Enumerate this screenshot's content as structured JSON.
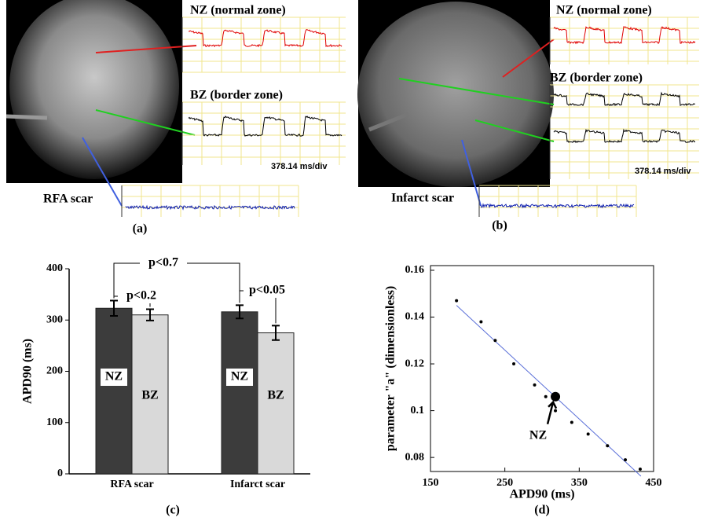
{
  "panels": [
    {
      "label": "(a)",
      "nz": "NZ  (normal zone)",
      "bz": "BZ (border zone)",
      "scale": "378.14 ms/div",
      "scar": "RFA scar"
    },
    {
      "label": "(b)",
      "nz": "NZ  (normal zone)",
      "bz": "BZ (border zone)",
      "scale": "378.14 ms/div",
      "scar": "Infarct scar"
    }
  ],
  "chart_data": [
    {
      "type": "bar",
      "panel_label": "(c)",
      "ylabel": "APD90 (ms)",
      "categories": [
        "RFA scar",
        "Infarct scar"
      ],
      "series": [
        {
          "name": "NZ",
          "color": "#3c3c3c",
          "values": [
            323,
            316
          ],
          "errors": [
            15,
            13
          ]
        },
        {
          "name": "BZ",
          "color": "#d9d9d9",
          "values": [
            310,
            275
          ],
          "errors": [
            11,
            14
          ]
        }
      ],
      "ylim": [
        0,
        400
      ],
      "yticks": [
        0,
        100,
        200,
        300,
        400
      ],
      "annotations": [
        "p<0.7",
        "p<0.2",
        "p<0.05"
      ]
    },
    {
      "type": "scatter",
      "panel_label": "(d)",
      "xlabel": "APD90 (ms)",
      "ylabel": "parameter  \"a\"  (dimensionless)",
      "x": [
        185,
        218,
        237,
        262,
        290,
        305,
        318,
        340,
        362,
        388,
        412,
        432
      ],
      "values": [
        0.147,
        0.138,
        0.13,
        0.12,
        0.111,
        0.106,
        0.1,
        0.095,
        0.09,
        0.085,
        0.079,
        0.075
      ],
      "color": "#000000",
      "fit": {
        "x": [
          185,
          433
        ],
        "y": [
          0.145,
          0.072
        ],
        "color": "#5a6fd8"
      },
      "highlight": {
        "x": 318,
        "y": 0.106,
        "label": "NZ"
      },
      "xlim": [
        150,
        450
      ],
      "xticks": [
        150,
        250,
        350,
        450
      ],
      "ylim": [
        0.074,
        0.162
      ],
      "yticks": [
        0.08,
        0.1,
        0.12,
        0.14,
        0.16
      ]
    }
  ]
}
